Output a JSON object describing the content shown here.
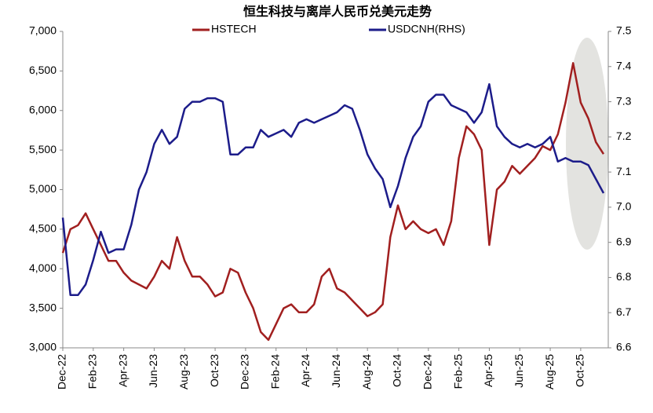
{
  "chart_data": {
    "type": "line",
    "title": "恒生科技与离岸人民币兑美元走势",
    "categories": [
      "Dec-22",
      null,
      null,
      null,
      "Feb-23",
      null,
      null,
      null,
      "Apr-23",
      null,
      null,
      null,
      "Jun-23",
      null,
      null,
      null,
      "Aug-23",
      null,
      null,
      null,
      "Oct-23",
      null,
      null,
      null,
      "Dec-23",
      null,
      null,
      null,
      "Feb-24",
      null,
      null,
      null,
      "Apr-24",
      null,
      null,
      null,
      "Jun-24",
      null,
      null,
      null,
      "Aug-24",
      null,
      null,
      null,
      "Oct-24",
      null,
      null,
      null,
      "Dec-24",
      null,
      null,
      null,
      "Feb-25",
      null,
      null,
      null,
      "Apr-25",
      null,
      null,
      null,
      "Jun-25",
      null,
      null,
      null,
      "Aug-25",
      null,
      null,
      null,
      "Oct-25",
      null,
      null,
      null
    ],
    "series": [
      {
        "name": "HSTECH",
        "color": "#a11f1f",
        "values": [
          4200,
          4500,
          4550,
          4700,
          4500,
          4300,
          4100,
          4100,
          3950,
          3850,
          3800,
          3750,
          3900,
          4100,
          4000,
          4400,
          4100,
          3900,
          3900,
          3800,
          3650,
          3700,
          4000,
          3950,
          3700,
          3500,
          3200,
          3100,
          3300,
          3500,
          3550,
          3450,
          3450,
          3550,
          3900,
          4000,
          3750,
          3700,
          3600,
          3500,
          3400,
          3450,
          3550,
          4400,
          4800,
          4500,
          4600,
          4500,
          4450,
          4500,
          4300,
          4600,
          5400,
          5800,
          5700,
          5500,
          4300,
          5000,
          5100,
          5300,
          5200,
          5300,
          5400,
          5550,
          5500,
          5700,
          6100,
          6600,
          6100,
          5900,
          5600,
          5450
        ]
      },
      {
        "name": "USDCNH(RHS)",
        "color": "#1c1c8a",
        "axis": "y2",
        "values": [
          6.97,
          6.75,
          6.75,
          6.78,
          6.85,
          6.93,
          6.87,
          6.88,
          6.88,
          6.95,
          7.05,
          7.1,
          7.18,
          7.22,
          7.18,
          7.2,
          7.28,
          7.3,
          7.3,
          7.31,
          7.31,
          7.3,
          7.15,
          7.15,
          7.17,
          7.17,
          7.22,
          7.2,
          7.21,
          7.22,
          7.2,
          7.24,
          7.25,
          7.24,
          7.25,
          7.26,
          7.27,
          7.29,
          7.28,
          7.22,
          7.15,
          7.11,
          7.08,
          7.0,
          7.06,
          7.14,
          7.2,
          7.23,
          7.3,
          7.32,
          7.32,
          7.29,
          7.28,
          7.27,
          7.24,
          7.27,
          7.35,
          7.23,
          7.2,
          7.18,
          7.17,
          7.18,
          7.17,
          7.18,
          7.2,
          7.13,
          7.14,
          7.13,
          7.13,
          7.12,
          7.08,
          7.04
        ]
      }
    ],
    "ylim": [
      3000,
      7000
    ],
    "yticks": [
      {
        "value": 3000,
        "label": "3,000"
      },
      {
        "value": 3500,
        "label": "3,500"
      },
      {
        "value": 4000,
        "label": "4,000"
      },
      {
        "value": 4500,
        "label": "4,500"
      },
      {
        "value": 5000,
        "label": "5,000"
      },
      {
        "value": 5500,
        "label": "5,500"
      },
      {
        "value": 6000,
        "label": "6,000"
      },
      {
        "value": 6500,
        "label": "6,500"
      },
      {
        "value": 7000,
        "label": "7,000"
      }
    ],
    "y2lim": [
      6.6,
      7.5
    ],
    "y2ticks": [
      6.6,
      6.7,
      6.8,
      6.9,
      {
        "value": 7,
        "label": "7.0"
      },
      7.1,
      7.2,
      7.3,
      7.4,
      7.5
    ],
    "grid": false,
    "legend": "top"
  }
}
